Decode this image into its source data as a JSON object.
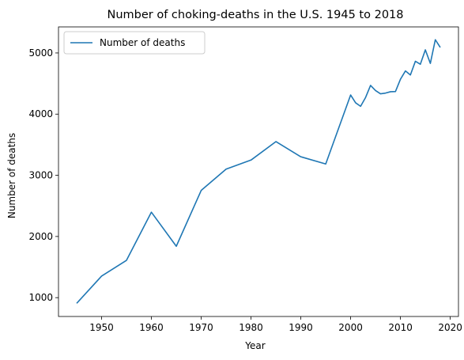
{
  "chart_data": {
    "type": "line",
    "title": "Number of choking-deaths in the U.S. 1945 to 2018",
    "xlabel": "Year",
    "ylabel": "Number of deaths",
    "xlim": [
      1941.35,
      2021.65
    ],
    "ylim": [
      692,
      5426
    ],
    "x_ticks": [
      1950,
      1960,
      1970,
      1980,
      1990,
      2000,
      2010,
      2020
    ],
    "y_ticks": [
      1000,
      2000,
      3000,
      4000,
      5000
    ],
    "grid": false,
    "legend_position": "upper left",
    "series": [
      {
        "name": "Number of deaths",
        "color": "#1f77b4",
        "x": [
          1945,
          1950,
          1955,
          1960,
          1965,
          1970,
          1975,
          1980,
          1985,
          1990,
          1995,
          2000,
          2001,
          2002,
          2003,
          2004,
          2005,
          2006,
          2007,
          2008,
          2009,
          2010,
          2011,
          2012,
          2013,
          2014,
          2015,
          2016,
          2017,
          2018
        ],
        "y": [
          907,
          1352,
          1610,
          2397,
          1840,
          2753,
          3101,
          3249,
          3551,
          3303,
          3185,
          4313,
          4185,
          4128,
          4272,
          4470,
          4386,
          4332,
          4344,
          4366,
          4370,
          4570,
          4706,
          4640,
          4864,
          4816,
          5051,
          4829,
          5216,
          5090
        ]
      }
    ]
  }
}
